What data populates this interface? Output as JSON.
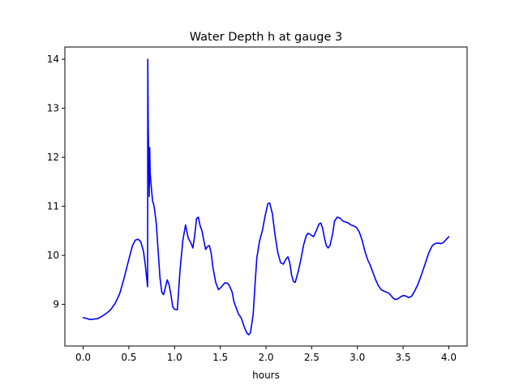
{
  "chart_data": {
    "type": "line",
    "title": "Water Depth h at gauge 3",
    "xlabel": "hours",
    "ylabel": "",
    "xlim": [
      -0.2,
      4.2
    ],
    "ylim": [
      8.15,
      14.25
    ],
    "xticks": [
      0.0,
      0.5,
      1.0,
      1.5,
      2.0,
      2.5,
      3.0,
      3.5,
      4.0
    ],
    "xtick_labels": [
      "0.0",
      "0.5",
      "1.0",
      "1.5",
      "2.0",
      "2.5",
      "3.0",
      "3.5",
      "4.0"
    ],
    "yticks": [
      9,
      10,
      11,
      12,
      13,
      14
    ],
    "ytick_labels": [
      "9",
      "10",
      "11",
      "12",
      "13",
      "14"
    ],
    "grid": false,
    "legend": "none",
    "series": [
      {
        "color": "#0000ff",
        "points": [
          [
            0.0,
            8.73
          ],
          [
            0.04,
            8.71
          ],
          [
            0.08,
            8.69
          ],
          [
            0.12,
            8.7
          ],
          [
            0.16,
            8.71
          ],
          [
            0.2,
            8.75
          ],
          [
            0.25,
            8.81
          ],
          [
            0.3,
            8.89
          ],
          [
            0.35,
            9.02
          ],
          [
            0.4,
            9.22
          ],
          [
            0.45,
            9.55
          ],
          [
            0.5,
            9.92
          ],
          [
            0.54,
            10.2
          ],
          [
            0.57,
            10.31
          ],
          [
            0.6,
            10.33
          ],
          [
            0.63,
            10.28
          ],
          [
            0.66,
            10.08
          ],
          [
            0.68,
            9.8
          ],
          [
            0.7,
            9.45
          ],
          [
            0.705,
            9.36
          ],
          [
            0.707,
            14.0
          ],
          [
            0.712,
            12.6
          ],
          [
            0.718,
            11.95
          ],
          [
            0.723,
            11.2
          ],
          [
            0.728,
            12.2
          ],
          [
            0.733,
            11.7
          ],
          [
            0.74,
            11.5
          ],
          [
            0.75,
            11.3
          ],
          [
            0.76,
            11.1
          ],
          [
            0.77,
            11.05
          ],
          [
            0.78,
            10.95
          ],
          [
            0.79,
            10.8
          ],
          [
            0.8,
            10.65
          ],
          [
            0.82,
            10.1
          ],
          [
            0.84,
            9.55
          ],
          [
            0.86,
            9.25
          ],
          [
            0.88,
            9.2
          ],
          [
            0.9,
            9.35
          ],
          [
            0.92,
            9.5
          ],
          [
            0.94,
            9.4
          ],
          [
            0.96,
            9.2
          ],
          [
            0.98,
            8.95
          ],
          [
            1.0,
            8.9
          ],
          [
            1.03,
            8.89
          ],
          [
            1.06,
            9.7
          ],
          [
            1.09,
            10.3
          ],
          [
            1.12,
            10.62
          ],
          [
            1.15,
            10.35
          ],
          [
            1.18,
            10.25
          ],
          [
            1.2,
            10.15
          ],
          [
            1.22,
            10.4
          ],
          [
            1.24,
            10.75
          ],
          [
            1.26,
            10.78
          ],
          [
            1.28,
            10.6
          ],
          [
            1.3,
            10.5
          ],
          [
            1.32,
            10.3
          ],
          [
            1.34,
            10.12
          ],
          [
            1.36,
            10.18
          ],
          [
            1.38,
            10.2
          ],
          [
            1.4,
            10.05
          ],
          [
            1.42,
            9.75
          ],
          [
            1.45,
            9.45
          ],
          [
            1.48,
            9.3
          ],
          [
            1.51,
            9.35
          ],
          [
            1.55,
            9.44
          ],
          [
            1.58,
            9.43
          ],
          [
            1.6,
            9.38
          ],
          [
            1.63,
            9.25
          ],
          [
            1.65,
            9.05
          ],
          [
            1.67,
            8.95
          ],
          [
            1.7,
            8.8
          ],
          [
            1.73,
            8.72
          ],
          [
            1.76,
            8.55
          ],
          [
            1.79,
            8.42
          ],
          [
            1.81,
            8.38
          ],
          [
            1.83,
            8.42
          ],
          [
            1.86,
            8.8
          ],
          [
            1.88,
            9.4
          ],
          [
            1.9,
            9.95
          ],
          [
            1.93,
            10.3
          ],
          [
            1.96,
            10.5
          ],
          [
            1.99,
            10.8
          ],
          [
            2.02,
            11.05
          ],
          [
            2.04,
            11.07
          ],
          [
            2.07,
            10.85
          ],
          [
            2.1,
            10.4
          ],
          [
            2.13,
            10.05
          ],
          [
            2.16,
            9.85
          ],
          [
            2.19,
            9.82
          ],
          [
            2.22,
            9.93
          ],
          [
            2.24,
            9.97
          ],
          [
            2.26,
            9.85
          ],
          [
            2.28,
            9.6
          ],
          [
            2.3,
            9.47
          ],
          [
            2.32,
            9.45
          ],
          [
            2.35,
            9.65
          ],
          [
            2.38,
            9.9
          ],
          [
            2.41,
            10.2
          ],
          [
            2.44,
            10.4
          ],
          [
            2.46,
            10.45
          ],
          [
            2.49,
            10.42
          ],
          [
            2.52,
            10.38
          ],
          [
            2.55,
            10.5
          ],
          [
            2.58,
            10.64
          ],
          [
            2.6,
            10.66
          ],
          [
            2.62,
            10.55
          ],
          [
            2.64,
            10.35
          ],
          [
            2.66,
            10.2
          ],
          [
            2.68,
            10.15
          ],
          [
            2.7,
            10.2
          ],
          [
            2.73,
            10.45
          ],
          [
            2.75,
            10.7
          ],
          [
            2.78,
            10.78
          ],
          [
            2.81,
            10.76
          ],
          [
            2.84,
            10.7
          ],
          [
            2.87,
            10.68
          ],
          [
            2.9,
            10.66
          ],
          [
            2.93,
            10.62
          ],
          [
            2.96,
            10.6
          ],
          [
            2.99,
            10.57
          ],
          [
            3.02,
            10.48
          ],
          [
            3.05,
            10.32
          ],
          [
            3.08,
            10.1
          ],
          [
            3.11,
            9.92
          ],
          [
            3.14,
            9.8
          ],
          [
            3.17,
            9.65
          ],
          [
            3.2,
            9.5
          ],
          [
            3.23,
            9.38
          ],
          [
            3.26,
            9.3
          ],
          [
            3.29,
            9.27
          ],
          [
            3.32,
            9.25
          ],
          [
            3.35,
            9.22
          ],
          [
            3.38,
            9.15
          ],
          [
            3.41,
            9.1
          ],
          [
            3.44,
            9.11
          ],
          [
            3.47,
            9.15
          ],
          [
            3.5,
            9.18
          ],
          [
            3.53,
            9.17
          ],
          [
            3.56,
            9.14
          ],
          [
            3.59,
            9.16
          ],
          [
            3.62,
            9.25
          ],
          [
            3.66,
            9.4
          ],
          [
            3.7,
            9.6
          ],
          [
            3.74,
            9.82
          ],
          [
            3.78,
            10.05
          ],
          [
            3.82,
            10.2
          ],
          [
            3.85,
            10.24
          ],
          [
            3.88,
            10.25
          ],
          [
            3.91,
            10.24
          ],
          [
            3.94,
            10.26
          ],
          [
            3.97,
            10.32
          ],
          [
            4.0,
            10.38
          ]
        ]
      }
    ]
  }
}
